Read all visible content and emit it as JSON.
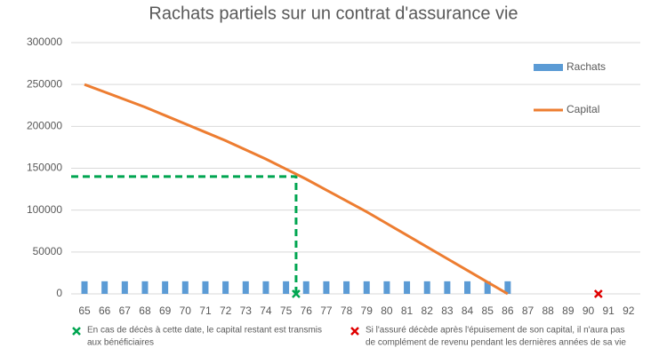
{
  "chart_data": {
    "type": "bar_line",
    "title": "Rachats partiels sur un contrat d'assurance vie",
    "categories": [
      65,
      66,
      67,
      68,
      69,
      70,
      71,
      72,
      73,
      74,
      75,
      76,
      77,
      78,
      79,
      80,
      81,
      82,
      83,
      84,
      85,
      86,
      87,
      88,
      89,
      90,
      91,
      92
    ],
    "series": [
      {
        "name": "Rachats",
        "type": "bar",
        "color": "#5b9bd5",
        "values": [
          15000,
          15000,
          15000,
          15000,
          15000,
          15000,
          15000,
          15000,
          15000,
          15000,
          15000,
          15000,
          15000,
          15000,
          15000,
          15000,
          15000,
          15000,
          15000,
          15000,
          15000,
          15000,
          null,
          null,
          null,
          null,
          null,
          null
        ]
      },
      {
        "name": "Capital",
        "type": "line",
        "color": "#ed7d31",
        "values": [
          250000,
          241000,
          232000,
          223000,
          213000,
          203000,
          193000,
          183000,
          172000,
          161000,
          149000,
          137000,
          124000,
          111000,
          98000,
          84000,
          70000,
          56000,
          42000,
          28000,
          14000,
          0,
          null,
          null,
          null,
          null,
          null,
          null
        ]
      }
    ],
    "ylim": [
      0,
      300000
    ],
    "yticks": [
      0,
      50000,
      100000,
      150000,
      200000,
      250000,
      300000
    ],
    "grid": true,
    "guide": {
      "x": 75.5,
      "y": 140000,
      "color": "#00a550"
    },
    "markers": [
      {
        "x": 75.5,
        "y": 0,
        "color": "#00a550",
        "note": [
          "En cas de décès à cette date, le capital restant est transmis",
          "aux bénéficiaires"
        ]
      },
      {
        "x": 90.5,
        "y": 0,
        "color": "#e00000",
        "note": [
          "Si l'assuré décède après l'épuisement de son capital, il n'aura pas",
          "de complément de revenu pendant les dernières années de sa vie"
        ]
      }
    ]
  }
}
